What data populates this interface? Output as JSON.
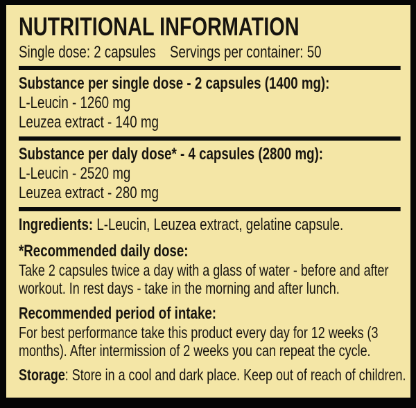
{
  "label": {
    "title": "NUTRITIONAL INFORMATION",
    "serving_line": {
      "single_dose": "Single dose: 2 capsules",
      "servings_per_container": "Servings per container: 50"
    },
    "sections": [
      {
        "heading": "Substance per single dose - 2 capsules (1400 mg):",
        "rows": [
          "L-Leucin - 1260 mg",
          "Leuzea extract - 140 mg"
        ]
      },
      {
        "heading": "Substance per daly dose* - 4 capsules (2800 mg):",
        "rows": [
          "L-Leucin - 2520 mg",
          "Leuzea extract - 280 mg"
        ]
      }
    ],
    "ingredients": {
      "label": "Ingredients:",
      "text": " L-Leucin, Leuzea extract, gelatine capsule."
    },
    "daily_dose": {
      "heading": "*Recommended daily dose:",
      "text": "Take 2 capsules twice a day with a glass of water - before and after workout. In rest days - take in the morning and after lunch."
    },
    "intake_period": {
      "heading": "Recommended period of intake:",
      "text": "For best performance take this product every day for 12 weeks (3 months). After intermission of 2 weeks you can repeat the cycle."
    },
    "storage": {
      "label": "Storage",
      "text": ": Store in a cool and dark place. Keep out of reach of children."
    },
    "colors": {
      "background": "#f4e6a6",
      "border": "#060606",
      "text": "#17140f",
      "divider": "#0c0c0c"
    }
  }
}
